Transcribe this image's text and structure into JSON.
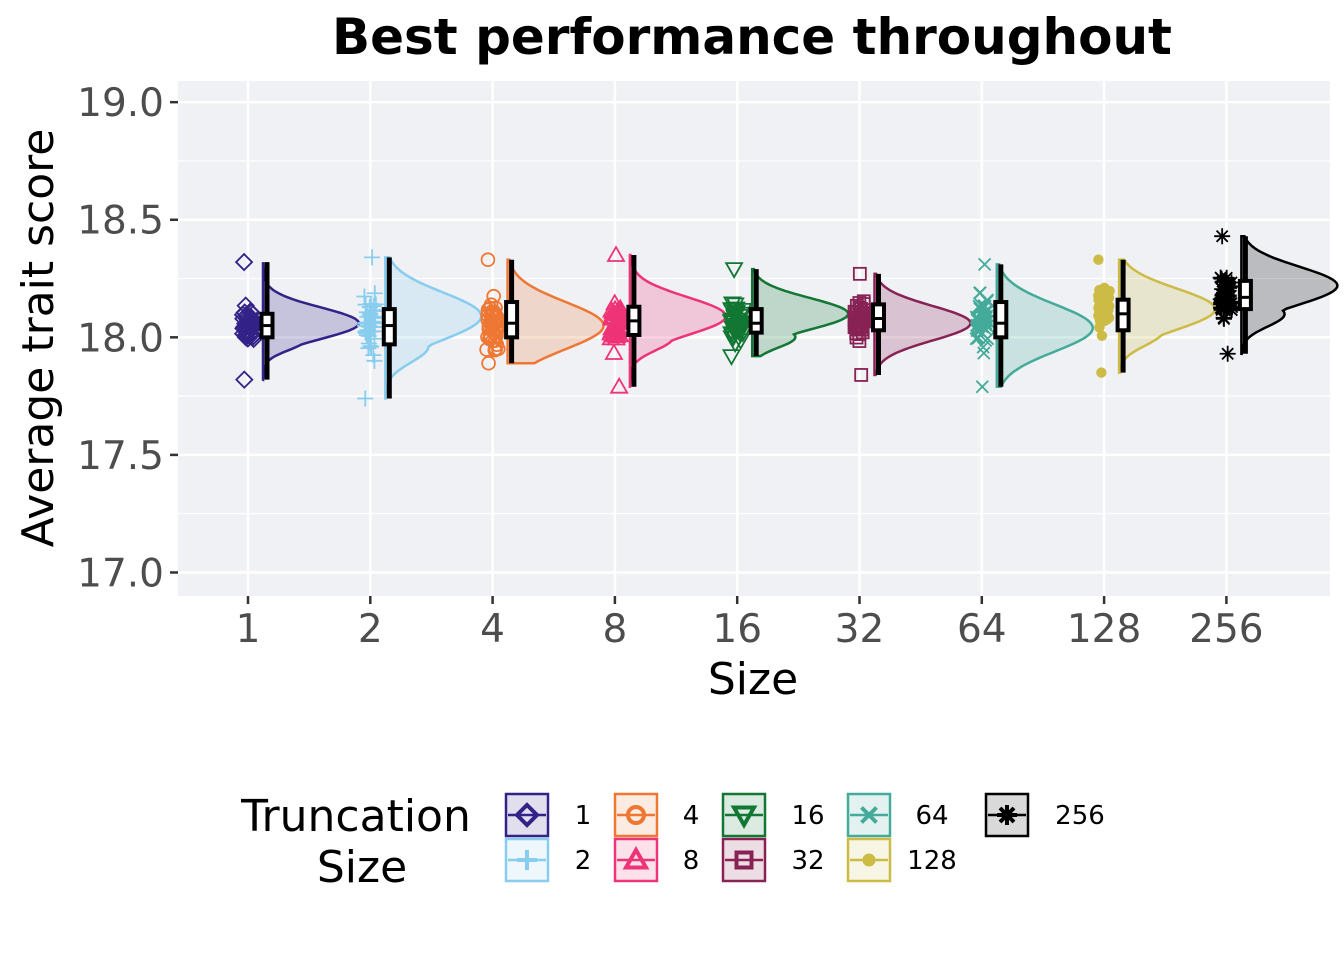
{
  "chart_data": {
    "type": "raincloud",
    "title": "Best performance throughout",
    "xlabel": "Size",
    "ylabel": "Average trait score",
    "ylim": [
      16.9,
      19.09
    ],
    "yticks": [
      "17.0",
      "17.5",
      "18.0",
      "18.5",
      "19.0"
    ],
    "ytick_values": [
      17.0,
      17.5,
      18.0,
      18.5,
      19.0
    ],
    "categories": [
      "1",
      "2",
      "4",
      "8",
      "16",
      "32",
      "64",
      "128",
      "256"
    ],
    "grid": true,
    "legend": {
      "title_lines": [
        "Truncation",
        "Size"
      ],
      "placement": "bottom"
    },
    "series": [
      {
        "name": "1",
        "color": "#332288",
        "marker": "diamond",
        "min": 17.82,
        "q1": 18.0,
        "median": 18.05,
        "q3": 18.1,
        "max": 18.32,
        "mode": 18.06
      },
      {
        "name": "2",
        "color": "#88CCEE",
        "marker": "plus",
        "min": 17.74,
        "q1": 17.97,
        "median": 18.05,
        "q3": 18.12,
        "max": 18.34,
        "mode": 18.09
      },
      {
        "name": "4",
        "color": "#EE7733",
        "marker": "circle-open",
        "min": 17.89,
        "q1": 18.0,
        "median": 18.06,
        "q3": 18.15,
        "max": 18.33,
        "mode": 18.05
      },
      {
        "name": "8",
        "color": "#EE3377",
        "marker": "triangle-up",
        "min": 17.79,
        "q1": 18.01,
        "median": 18.07,
        "q3": 18.13,
        "max": 18.35,
        "mode": 18.09
      },
      {
        "name": "16",
        "color": "#117733",
        "marker": "triangle-down",
        "min": 17.92,
        "q1": 18.02,
        "median": 18.06,
        "q3": 18.12,
        "max": 18.29,
        "mode": 18.1
      },
      {
        "name": "32",
        "color": "#882255",
        "marker": "square-open",
        "min": 17.84,
        "q1": 18.03,
        "median": 18.08,
        "q3": 18.14,
        "max": 18.27,
        "mode": 18.06
      },
      {
        "name": "64",
        "color": "#44AA99",
        "marker": "x",
        "min": 17.79,
        "q1": 18.0,
        "median": 18.06,
        "q3": 18.15,
        "max": 18.31,
        "mode": 18.04
      },
      {
        "name": "128",
        "color": "#CCBB44",
        "marker": "circle-filled",
        "min": 17.85,
        "q1": 18.03,
        "median": 18.1,
        "q3": 18.16,
        "max": 18.33,
        "mode": 18.12
      },
      {
        "name": "256",
        "color": "#000000",
        "marker": "star",
        "min": 17.93,
        "q1": 18.12,
        "median": 18.17,
        "q3": 18.24,
        "max": 18.43,
        "mode": 18.22
      }
    ]
  }
}
